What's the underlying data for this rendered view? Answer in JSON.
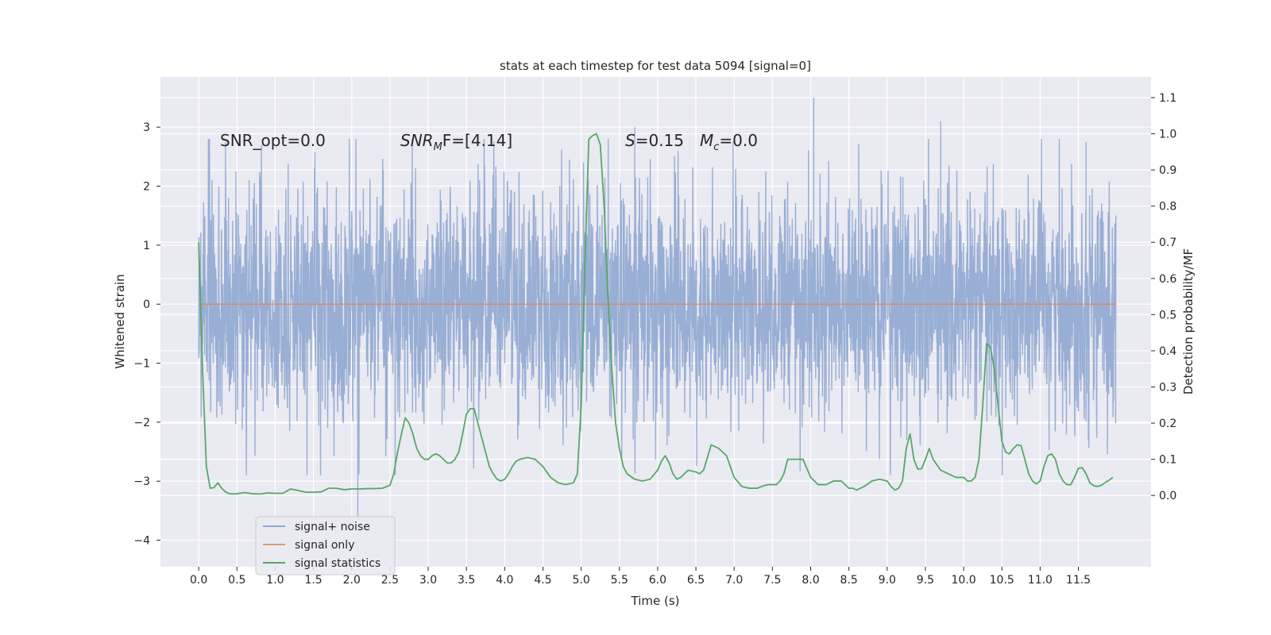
{
  "chart_data": {
    "type": "line",
    "title": "stats at each timestep for test data 5094 [signal=0]",
    "xlabel": "Time (s)",
    "ylabel_left": "Whitened strain",
    "ylabel_right": "Detection probability/MF",
    "xlim": [
      -0.5,
      12.45
    ],
    "ylim_left": [
      -4.45,
      3.85
    ],
    "ylim_right": [
      -0.197,
      1.157
    ],
    "x_ticks": [
      0.0,
      0.5,
      1.0,
      1.5,
      2.0,
      2.5,
      3.0,
      3.5,
      4.0,
      4.5,
      5.0,
      5.5,
      6.0,
      6.5,
      7.0,
      7.5,
      8.0,
      8.5,
      9.0,
      9.5,
      10.0,
      10.5,
      11.0,
      11.5
    ],
    "x_tick_labels": [
      "0.0",
      "0.5",
      "1.0",
      "1.5",
      "2.0",
      "2.5",
      "3.0",
      "3.5",
      "4.0",
      "4.5",
      "5.0",
      "5.5",
      "6.0",
      "6.5",
      "7.0",
      "7.5",
      "8.0",
      "8.5",
      "9.0",
      "9.5",
      "10.0",
      "10.5",
      "11.0",
      "11.5"
    ],
    "y_left_ticks": [
      3,
      2,
      1,
      0,
      -1,
      -2,
      -3,
      -4
    ],
    "y_left_tick_labels": [
      "3",
      "2",
      "1",
      "0",
      "−1",
      "−2",
      "−3",
      "−4"
    ],
    "y_right_ticks": [
      1.1,
      1.0,
      0.9,
      0.8,
      0.7,
      0.6,
      0.5,
      0.4,
      0.3,
      0.2,
      0.1,
      0.0
    ],
    "y_right_tick_labels": [
      "1.1",
      "1.0",
      "0.9",
      "0.8",
      "0.7",
      "0.6",
      "0.5",
      "0.4",
      "0.3",
      "0.2",
      "0.1",
      "0.0"
    ],
    "grid": true,
    "legend_position": "lower-left",
    "annotations": {
      "snr_opt": "SNR_opt=0.0",
      "snr_mf_main": "SNR",
      "snr_mf_sub": "M",
      "snr_mf_rest": "F=[4.14]",
      "s_main": "S",
      "s_rest": "=0.15",
      "mc_main": "M",
      "mc_sub": "c",
      "mc_rest": "=0.0"
    },
    "noise_series": {
      "name": "signal+ noise",
      "x_range": [
        0.0,
        11.99
      ],
      "band_abs": 1.5,
      "notable_extremes": [
        {
          "x": 8.04,
          "y": 3.5
        },
        {
          "x": 2.08,
          "y": -3.65
        },
        {
          "x": 0.35,
          "y": 2.75
        },
        {
          "x": 5.7,
          "y": 3.0
        },
        {
          "x": 9.7,
          "y": 3.1
        },
        {
          "x": 11.6,
          "y": 2.75
        }
      ]
    },
    "signal_only": {
      "name": "signal only",
      "x": [
        0.0,
        11.99
      ],
      "y": [
        0.0,
        0.0
      ]
    },
    "series": [
      {
        "name": "signal statistics",
        "axis": "right",
        "x": [
          0.0,
          0.05,
          0.1,
          0.15,
          0.2,
          0.25,
          0.3,
          0.35,
          0.4,
          0.45,
          0.5,
          0.6,
          0.7,
          0.8,
          0.9,
          1.0,
          1.1,
          1.2,
          1.3,
          1.4,
          1.5,
          1.6,
          1.7,
          1.8,
          1.9,
          2.0,
          2.1,
          2.2,
          2.3,
          2.4,
          2.5,
          2.55,
          2.6,
          2.65,
          2.7,
          2.75,
          2.8,
          2.85,
          2.9,
          2.95,
          3.0,
          3.05,
          3.1,
          3.15,
          3.2,
          3.25,
          3.3,
          3.35,
          3.4,
          3.45,
          3.5,
          3.55,
          3.6,
          3.65,
          3.7,
          3.75,
          3.8,
          3.85,
          3.9,
          3.95,
          4.0,
          4.05,
          4.1,
          4.15,
          4.2,
          4.3,
          4.4,
          4.5,
          4.6,
          4.7,
          4.8,
          4.9,
          4.95,
          5.0,
          5.05,
          5.1,
          5.15,
          5.2,
          5.25,
          5.3,
          5.35,
          5.4,
          5.45,
          5.5,
          5.55,
          5.6,
          5.7,
          5.8,
          5.9,
          6.0,
          6.05,
          6.1,
          6.15,
          6.2,
          6.25,
          6.3,
          6.35,
          6.4,
          6.5,
          6.55,
          6.6,
          6.65,
          6.7,
          6.8,
          6.9,
          7.0,
          7.1,
          7.2,
          7.3,
          7.4,
          7.45,
          7.5,
          7.55,
          7.6,
          7.65,
          7.7,
          7.8,
          7.9,
          8.0,
          8.1,
          8.2,
          8.3,
          8.4,
          8.5,
          8.55,
          8.6,
          8.7,
          8.8,
          8.9,
          9.0,
          9.05,
          9.1,
          9.15,
          9.2,
          9.25,
          9.3,
          9.35,
          9.4,
          9.45,
          9.5,
          9.55,
          9.6,
          9.7,
          9.8,
          9.9,
          10.0,
          10.05,
          10.1,
          10.15,
          10.2,
          10.25,
          10.3,
          10.35,
          10.4,
          10.45,
          10.5,
          10.55,
          10.6,
          10.65,
          10.7,
          10.75,
          10.8,
          10.85,
          10.9,
          10.95,
          11.0,
          11.05,
          11.1,
          11.15,
          11.2,
          11.25,
          11.3,
          11.35,
          11.4,
          11.45,
          11.5,
          11.55,
          11.6,
          11.65,
          11.7,
          11.75,
          11.8,
          11.85,
          11.9,
          11.95
        ],
        "y": [
          0.7,
          0.35,
          0.08,
          0.02,
          0.022,
          0.035,
          0.02,
          0.01,
          0.005,
          0.004,
          0.005,
          0.008,
          0.005,
          0.004,
          0.007,
          0.006,
          0.006,
          0.018,
          0.014,
          0.009,
          0.009,
          0.01,
          0.02,
          0.02,
          0.016,
          0.018,
          0.018,
          0.019,
          0.019,
          0.02,
          0.028,
          0.06,
          0.12,
          0.17,
          0.215,
          0.2,
          0.17,
          0.13,
          0.11,
          0.1,
          0.1,
          0.11,
          0.115,
          0.11,
          0.1,
          0.09,
          0.09,
          0.1,
          0.12,
          0.17,
          0.225,
          0.24,
          0.24,
          0.2,
          0.16,
          0.12,
          0.08,
          0.06,
          0.045,
          0.04,
          0.045,
          0.06,
          0.08,
          0.095,
          0.1,
          0.105,
          0.1,
          0.08,
          0.05,
          0.035,
          0.03,
          0.035,
          0.06,
          0.25,
          0.65,
          0.985,
          0.995,
          1.0,
          0.97,
          0.8,
          0.55,
          0.35,
          0.2,
          0.13,
          0.08,
          0.06,
          0.045,
          0.04,
          0.045,
          0.07,
          0.095,
          0.11,
          0.09,
          0.06,
          0.045,
          0.05,
          0.06,
          0.07,
          0.065,
          0.06,
          0.07,
          0.105,
          0.14,
          0.13,
          0.11,
          0.05,
          0.025,
          0.02,
          0.02,
          0.028,
          0.03,
          0.03,
          0.03,
          0.04,
          0.06,
          0.1,
          0.1,
          0.1,
          0.05,
          0.03,
          0.03,
          0.04,
          0.04,
          0.02,
          0.02,
          0.015,
          0.025,
          0.04,
          0.045,
          0.04,
          0.025,
          0.015,
          0.02,
          0.04,
          0.13,
          0.17,
          0.1,
          0.073,
          0.074,
          0.1,
          0.13,
          0.1,
          0.07,
          0.06,
          0.05,
          0.05,
          0.04,
          0.04,
          0.05,
          0.1,
          0.25,
          0.42,
          0.41,
          0.35,
          0.25,
          0.15,
          0.12,
          0.115,
          0.13,
          0.14,
          0.138,
          0.1,
          0.06,
          0.04,
          0.032,
          0.04,
          0.08,
          0.11,
          0.115,
          0.1,
          0.06,
          0.04,
          0.03,
          0.03,
          0.05,
          0.075,
          0.077,
          0.06,
          0.035,
          0.027,
          0.025,
          0.028,
          0.036,
          0.042,
          0.05
        ],
        "color": "#55a868"
      }
    ],
    "legend": [
      {
        "label": "signal+ noise",
        "color": "#8fa7d0"
      },
      {
        "label": "signal only",
        "color": "#dd9a7a"
      },
      {
        "label": "signal statistics",
        "color": "#55a868"
      }
    ],
    "colors": {
      "plot_bg": "#eaeaf2",
      "grid": "#ffffff",
      "noise": "#8fa7d0",
      "signal_only": "#dd8452",
      "stats": "#55a868"
    }
  }
}
